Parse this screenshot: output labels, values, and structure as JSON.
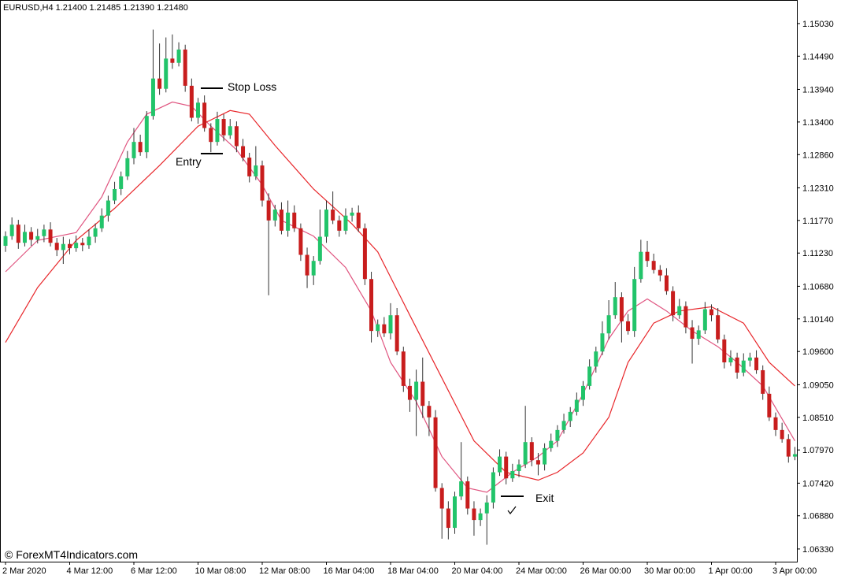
{
  "chart_data": {
    "type": "candlestick",
    "title": "EURUSD,H4  1.21400 1.21485 1.21390 1.21480",
    "watermark": "© ForexMT4Indicators.com",
    "annotations": {
      "stop_loss": "Stop Loss",
      "entry": "Entry",
      "exit": "Exit"
    },
    "up_color": "#22c46a",
    "down_color": "#c81d1d",
    "wick_color": "#333333",
    "categories": [
      "2 Mar 2020",
      null,
      null,
      null,
      null,
      null,
      null,
      null,
      null,
      null,
      "4 Mar 12:00",
      null,
      null,
      null,
      null,
      null,
      null,
      null,
      null,
      null,
      "6 Mar 12:00",
      null,
      null,
      null,
      null,
      null,
      null,
      null,
      null,
      null,
      "10 Mar 08:00",
      null,
      null,
      null,
      null,
      null,
      null,
      null,
      null,
      null,
      "12 Mar 08:00",
      null,
      null,
      null,
      null,
      null,
      null,
      null,
      null,
      null,
      "16 Mar 04:00",
      null,
      null,
      null,
      null,
      null,
      null,
      null,
      null,
      null,
      "18 Mar 04:00",
      null,
      null,
      null,
      null,
      null,
      null,
      null,
      null,
      null,
      "20 Mar 04:00",
      null,
      null,
      null,
      null,
      null,
      null,
      null,
      null,
      null,
      "24 Mar 00:00",
      null,
      null,
      null,
      null,
      null,
      null,
      null,
      null,
      null,
      "26 Mar 00:00",
      null,
      null,
      null,
      null,
      null,
      null,
      null,
      null,
      null,
      "30 Mar 00:00",
      null,
      null,
      null,
      null,
      null,
      null,
      null,
      null,
      null,
      "1 Apr 00:00",
      null,
      null,
      null,
      null,
      null,
      null,
      null,
      null,
      null,
      "3 Apr 00:00",
      null,
      null,
      null
    ],
    "open": [
      1.1135,
      1.1151,
      1.117,
      1.114,
      1.1158,
      1.1145,
      1.1151,
      1.1162,
      1.114,
      1.1128,
      1.1138,
      1.1131,
      1.114,
      1.1136,
      1.115,
      1.1164,
      1.1185,
      1.121,
      1.1229,
      1.125,
      1.128,
      1.1307,
      1.129,
      1.135,
      1.1412,
      1.1395,
      1.1445,
      1.1438,
      1.146,
      1.14,
      1.1347,
      1.1372,
      1.133,
      1.1307,
      1.1345,
      1.1318,
      1.1333,
      1.13,
      1.1281,
      1.125,
      1.1268,
      1.121,
      1.1177,
      1.1195,
      1.116,
      1.119,
      1.1164,
      1.112,
      1.1086,
      1.111,
      1.115,
      1.1195,
      1.1177,
      1.116,
      1.1185,
      1.119,
      1.1164,
      1.108,
      1.0994,
      1.1005,
      1.099,
      1.102,
      1.096,
      1.0903,
      1.088,
      1.091,
      1.087,
      1.0851,
      1.0734,
      1.07,
      1.0668,
      1.072,
      1.0745,
      1.07,
      1.0681,
      1.0692,
      1.071,
      1.076,
      1.0786,
      1.075,
      1.0762,
      1.0773,
      1.081,
      1.078,
      1.0773,
      1.08,
      1.0812,
      1.083,
      1.0845,
      1.086,
      1.088,
      1.0903,
      1.0935,
      1.096,
      1.099,
      1.102,
      1.105,
      1.101,
      1.0994,
      1.108,
      1.1125,
      1.111,
      1.1095,
      1.1086,
      1.106,
      1.102,
      1.1035,
      1.1,
      1.0981,
      1.0995,
      1.103,
      1.102,
      1.098,
      1.0942,
      1.095,
      1.0925,
      1.0945,
      1.095,
      1.0929,
      1.089,
      1.0851,
      1.083,
      1.0815,
      1.0786
    ],
    "high": [
      1.1159,
      1.1182,
      1.1178,
      1.117,
      1.1166,
      1.1163,
      1.117,
      1.1174,
      1.1148,
      1.115,
      1.1146,
      1.1152,
      1.1148,
      1.1162,
      1.1172,
      1.1197,
      1.1218,
      1.1241,
      1.1258,
      1.1292,
      1.133,
      1.1319,
      1.1358,
      1.1493,
      1.147,
      1.148,
      1.1485,
      1.1472,
      1.1468,
      1.1412,
      1.138,
      1.1384,
      1.1338,
      1.1357,
      1.1353,
      1.1345,
      1.1341,
      1.1312,
      1.1289,
      1.13,
      1.1276,
      1.1222,
      1.1203,
      1.1207,
      1.121,
      1.1202,
      1.1172,
      1.1132,
      1.1118,
      1.1195,
      1.121,
      1.1225,
      1.1185,
      1.1197,
      1.1198,
      1.1202,
      1.1172,
      1.1092,
      1.1013,
      1.1017,
      1.104,
      1.1032,
      1.0968,
      1.0915,
      1.093,
      1.095,
      1.0878,
      1.0863,
      1.0742,
      1.0712,
      1.0728,
      1.081,
      1.0753,
      1.0712,
      1.07,
      1.0722,
      1.0768,
      1.0798,
      1.0794,
      1.0774,
      1.0781,
      1.087,
      1.0818,
      1.0792,
      1.0808,
      1.0824,
      1.0838,
      1.0857,
      1.0868,
      1.0892,
      1.0911,
      1.0947,
      1.0968,
      1.101,
      1.1045,
      1.1075,
      1.1058,
      1.1022,
      1.11,
      1.1145,
      1.1143,
      1.1122,
      1.1103,
      1.1098,
      1.1068,
      1.1047,
      1.1043,
      1.1012,
      1.1003,
      1.1042,
      1.1038,
      1.1032,
      1.0988,
      1.0962,
      1.0958,
      1.0957,
      1.0958,
      1.0962,
      1.0937,
      1.0902,
      1.0859,
      1.0842,
      1.0823,
      1.0802
    ],
    "low": [
      1.1125,
      1.1145,
      1.113,
      1.1134,
      1.1135,
      1.1139,
      1.1141,
      1.1134,
      1.1118,
      1.1105,
      1.1121,
      1.1125,
      1.1126,
      1.113,
      1.114,
      1.1158,
      1.1175,
      1.1204,
      1.1219,
      1.1244,
      1.127,
      1.1284,
      1.128,
      1.1344,
      1.1385,
      1.1389,
      1.1428,
      1.1432,
      1.139,
      1.1341,
      1.1337,
      1.1324,
      1.129,
      1.1301,
      1.1308,
      1.1312,
      1.129,
      1.1275,
      1.124,
      1.1244,
      1.12,
      1.1053,
      1.1167,
      1.1154,
      1.115,
      1.1158,
      1.111,
      1.1065,
      1.107,
      1.1104,
      1.114,
      1.1171,
      1.115,
      1.1154,
      1.1175,
      1.1158,
      1.107,
      1.0975,
      1.0984,
      1.0984,
      1.098,
      1.0954,
      1.0893,
      1.086,
      1.082,
      1.085,
      1.082,
      1.0728,
      1.065,
      1.0649,
      1.0658,
      1.0714,
      1.069,
      1.0655,
      1.0671,
      1.064,
      1.07,
      1.0754,
      1.074,
      1.0744,
      1.0752,
      1.0767,
      1.077,
      1.0755,
      1.0763,
      1.0794,
      1.0802,
      1.0824,
      1.0835,
      1.0854,
      1.087,
      1.0897,
      1.0925,
      1.0954,
      1.098,
      1.1014,
      1.0975,
      1.0988,
      1.0984,
      1.1074,
      1.11,
      1.1089,
      1.1076,
      1.1054,
      1.101,
      1.1014,
      1.099,
      1.094,
      1.0971,
      1.0989,
      1.101,
      1.0974,
      1.0932,
      1.0936,
      1.0915,
      1.0919,
      1.0935,
      1.0923,
      1.088,
      1.0845,
      1.082,
      1.0809,
      1.0776,
      1.078
    ],
    "close": [
      1.1151,
      1.117,
      1.114,
      1.1158,
      1.1145,
      1.1151,
      1.1162,
      1.114,
      1.1128,
      1.1138,
      1.1131,
      1.114,
      1.1136,
      1.115,
      1.1164,
      1.1185,
      1.121,
      1.1229,
      1.125,
      1.128,
      1.1307,
      1.129,
      1.135,
      1.1412,
      1.1395,
      1.1445,
      1.1438,
      1.146,
      1.14,
      1.1347,
      1.1372,
      1.133,
      1.1307,
      1.1345,
      1.1318,
      1.1333,
      1.13,
      1.1281,
      1.125,
      1.1268,
      1.121,
      1.1177,
      1.1195,
      1.116,
      1.119,
      1.1164,
      1.112,
      1.1086,
      1.111,
      1.115,
      1.1195,
      1.1177,
      1.116,
      1.1185,
      1.119,
      1.1164,
      1.108,
      1.0994,
      1.1005,
      1.099,
      1.102,
      1.096,
      1.0903,
      1.088,
      1.091,
      1.087,
      1.0851,
      1.0734,
      1.07,
      1.0668,
      1.072,
      1.0745,
      1.07,
      1.0681,
      1.0692,
      1.071,
      1.076,
      1.0786,
      1.075,
      1.0762,
      1.0773,
      1.081,
      1.078,
      1.0773,
      1.08,
      1.0812,
      1.083,
      1.0845,
      1.086,
      1.088,
      1.0903,
      1.0935,
      1.096,
      1.099,
      1.102,
      1.105,
      1.101,
      1.0994,
      1.108,
      1.1125,
      1.111,
      1.1095,
      1.1086,
      1.106,
      1.102,
      1.1035,
      1.1,
      1.0981,
      1.0995,
      1.103,
      1.102,
      1.098,
      1.0942,
      1.095,
      1.0925,
      1.0945,
      1.095,
      1.0929,
      1.089,
      1.0851,
      1.083,
      1.0815,
      1.0786,
      1.079
    ],
    "moving_averages": [
      {
        "color": "#e05580",
        "x": [
          0,
          5,
          11,
          15,
          19,
          22,
          26,
          29,
          32,
          36,
          40,
          43,
          48,
          53,
          57,
          60,
          64,
          68,
          72,
          75,
          79,
          83,
          86,
          90,
          94,
          97,
          100,
          103,
          107,
          111,
          114,
          118,
          123
        ],
        "values": [
          1.1092,
          1.1144,
          1.1157,
          1.1216,
          1.1307,
          1.1353,
          1.1373,
          1.1366,
          1.1333,
          1.1294,
          1.1236,
          1.1177,
          1.1151,
          1.1099,
          1.1027,
          1.0942,
          1.0877,
          1.0786,
          1.0734,
          1.0727,
          1.076,
          1.0786,
          1.0812,
          1.089,
          1.0981,
          1.1027,
          1.1047,
          1.1027,
          1.0994,
          1.0968,
          1.0942,
          1.0903,
          1.0812
        ]
      },
      {
        "color": "#e8262a",
        "x": [
          0,
          5,
          11,
          17,
          24,
          30,
          35,
          38,
          42,
          48,
          54,
          58,
          63,
          68,
          73,
          78,
          83,
          86,
          90,
          94,
          97,
          101,
          105,
          110,
          115,
          119,
          123
        ],
        "values": [
          1.0975,
          1.1066,
          1.1144,
          1.1197,
          1.1268,
          1.1333,
          1.1359,
          1.1353,
          1.1301,
          1.1229,
          1.1171,
          1.1125,
          1.102,
          1.0916,
          1.0812,
          1.076,
          1.0747,
          1.076,
          1.0792,
          1.0851,
          1.0942,
          1.1007,
          1.1027,
          1.1034,
          1.1007,
          1.0942,
          1.0903
        ]
      }
    ],
    "ylim": [
      1.0612,
      1.1542
    ],
    "yticks": [
      {
        "value": 1.1503,
        "label": "1.15030"
      },
      {
        "value": 1.1449,
        "label": "1.14490"
      },
      {
        "value": 1.1394,
        "label": "1.13940"
      },
      {
        "value": 1.134,
        "label": "1.13400"
      },
      {
        "value": 1.1286,
        "label": "1.12860"
      },
      {
        "value": 1.1231,
        "label": "1.12310"
      },
      {
        "value": 1.1177,
        "label": "1.11770"
      },
      {
        "value": 1.1123,
        "label": "1.11230"
      },
      {
        "value": 1.1068,
        "label": "1.10680"
      },
      {
        "value": 1.1014,
        "label": "1.10140"
      },
      {
        "value": 1.096,
        "label": "1.09600"
      },
      {
        "value": 1.0905,
        "label": "1.09050"
      },
      {
        "value": 1.0851,
        "label": "1.08510"
      },
      {
        "value": 1.0797,
        "label": "1.07970"
      },
      {
        "value": 1.0742,
        "label": "1.07420"
      },
      {
        "value": 1.0688,
        "label": "1.06880"
      },
      {
        "value": 1.0633,
        "label": "1.06330"
      }
    ]
  }
}
